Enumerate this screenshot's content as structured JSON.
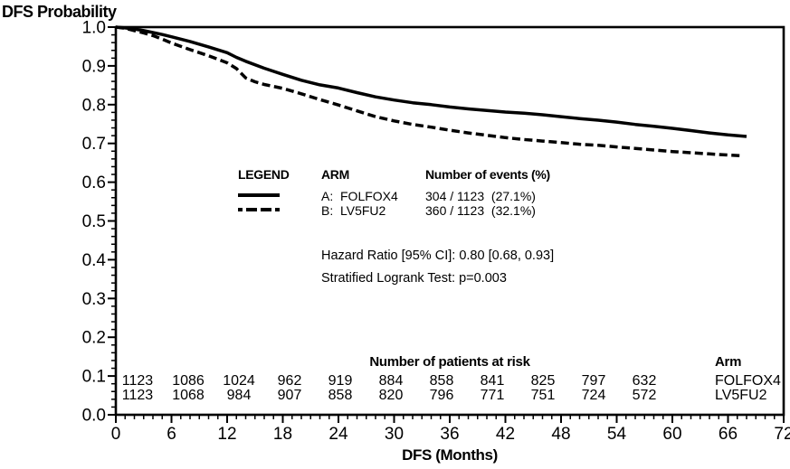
{
  "page": {
    "title": "DFS Probability"
  },
  "colors": {
    "foreground": "#000000",
    "background": "#ffffff"
  },
  "chart_data": {
    "type": "line",
    "subtype": "kaplan-meier",
    "title": "DFS Probability",
    "xlabel": "DFS (Months)",
    "ylabel": "DFS Probability",
    "xlim": [
      0,
      72
    ],
    "ylim": [
      0.0,
      1.0
    ],
    "x_ticks": [
      0,
      6,
      12,
      18,
      24,
      30,
      36,
      42,
      48,
      54,
      60,
      66,
      72
    ],
    "x_minor_step": 1,
    "y_tick_labels": [
      "1.0",
      "0.9",
      "0.8",
      "0.7",
      "0.6",
      "0.5",
      "0.4",
      "0.3",
      "0.2",
      "0.1",
      "0.0"
    ],
    "y_major_step": 0.1,
    "y_minor_step": 0.02,
    "grid": false,
    "legend_position": "inside upper-middle",
    "series": [
      {
        "name": "A: FOLFOX4",
        "style": "solid",
        "color": "#000000",
        "points": [
          [
            0,
            1.0
          ],
          [
            1,
            0.998
          ],
          [
            2,
            0.995
          ],
          [
            3,
            0.991
          ],
          [
            4,
            0.986
          ],
          [
            5,
            0.981
          ],
          [
            6,
            0.975
          ],
          [
            8,
            0.963
          ],
          [
            10,
            0.949
          ],
          [
            12,
            0.934
          ],
          [
            13,
            0.922
          ],
          [
            14,
            0.912
          ],
          [
            16,
            0.894
          ],
          [
            18,
            0.878
          ],
          [
            20,
            0.863
          ],
          [
            22,
            0.851
          ],
          [
            24,
            0.843
          ],
          [
            26,
            0.831
          ],
          [
            28,
            0.82
          ],
          [
            30,
            0.812
          ],
          [
            32,
            0.805
          ],
          [
            34,
            0.8
          ],
          [
            36,
            0.794
          ],
          [
            38,
            0.789
          ],
          [
            40,
            0.785
          ],
          [
            42,
            0.781
          ],
          [
            44,
            0.778
          ],
          [
            46,
            0.774
          ],
          [
            48,
            0.769
          ],
          [
            50,
            0.764
          ],
          [
            52,
            0.76
          ],
          [
            54,
            0.755
          ],
          [
            56,
            0.749
          ],
          [
            58,
            0.744
          ],
          [
            60,
            0.739
          ],
          [
            62,
            0.733
          ],
          [
            64,
            0.727
          ],
          [
            66,
            0.722
          ],
          [
            68,
            0.718
          ]
        ]
      },
      {
        "name": "B: LV5FU2",
        "style": "dashed",
        "color": "#000000",
        "points": [
          [
            0,
            1.0
          ],
          [
            1,
            0.997
          ],
          [
            2,
            0.991
          ],
          [
            3,
            0.985
          ],
          [
            4,
            0.978
          ],
          [
            5,
            0.969
          ],
          [
            6,
            0.959
          ],
          [
            8,
            0.942
          ],
          [
            10,
            0.926
          ],
          [
            12,
            0.908
          ],
          [
            13,
            0.893
          ],
          [
            14,
            0.869
          ],
          [
            15,
            0.859
          ],
          [
            16,
            0.852
          ],
          [
            18,
            0.842
          ],
          [
            20,
            0.828
          ],
          [
            22,
            0.813
          ],
          [
            24,
            0.799
          ],
          [
            26,
            0.784
          ],
          [
            28,
            0.769
          ],
          [
            30,
            0.758
          ],
          [
            32,
            0.749
          ],
          [
            34,
            0.742
          ],
          [
            36,
            0.734
          ],
          [
            38,
            0.727
          ],
          [
            40,
            0.721
          ],
          [
            42,
            0.715
          ],
          [
            44,
            0.71
          ],
          [
            46,
            0.706
          ],
          [
            48,
            0.702
          ],
          [
            50,
            0.698
          ],
          [
            52,
            0.695
          ],
          [
            54,
            0.691
          ],
          [
            56,
            0.687
          ],
          [
            58,
            0.683
          ],
          [
            60,
            0.679
          ],
          [
            62,
            0.676
          ],
          [
            64,
            0.673
          ],
          [
            66,
            0.67
          ],
          [
            67.5,
            0.668
          ]
        ]
      }
    ]
  },
  "legend": {
    "header": {
      "legend": "LEGEND",
      "arm": "ARM",
      "events": "Number of events (%)"
    },
    "rows": [
      {
        "arm": "A:  FOLFOX4",
        "events": "304 / 1123  (27.1%)",
        "style": "solid"
      },
      {
        "arm": "B:  LV5FU2",
        "events": "360 / 1123  (32.1%)",
        "style": "dashed"
      }
    ]
  },
  "annotations": {
    "hazard_ratio": "Hazard Ratio [95% CI]: 0.80 [0.68, 0.93]",
    "logrank": "Stratified Logrank Test: p=0.003"
  },
  "at_risk": {
    "title": "Number of patients at risk",
    "arm_header": "Arm",
    "months": [
      0,
      6,
      12,
      18,
      24,
      30,
      36,
      42,
      48,
      54,
      60
    ],
    "rows": [
      {
        "arm": "FOLFOX4",
        "counts": [
          1123,
          1086,
          1024,
          962,
          919,
          884,
          858,
          841,
          825,
          797,
          632
        ]
      },
      {
        "arm": "LV5FU2",
        "counts": [
          1123,
          1068,
          984,
          907,
          858,
          820,
          796,
          771,
          751,
          724,
          572
        ]
      }
    ]
  }
}
